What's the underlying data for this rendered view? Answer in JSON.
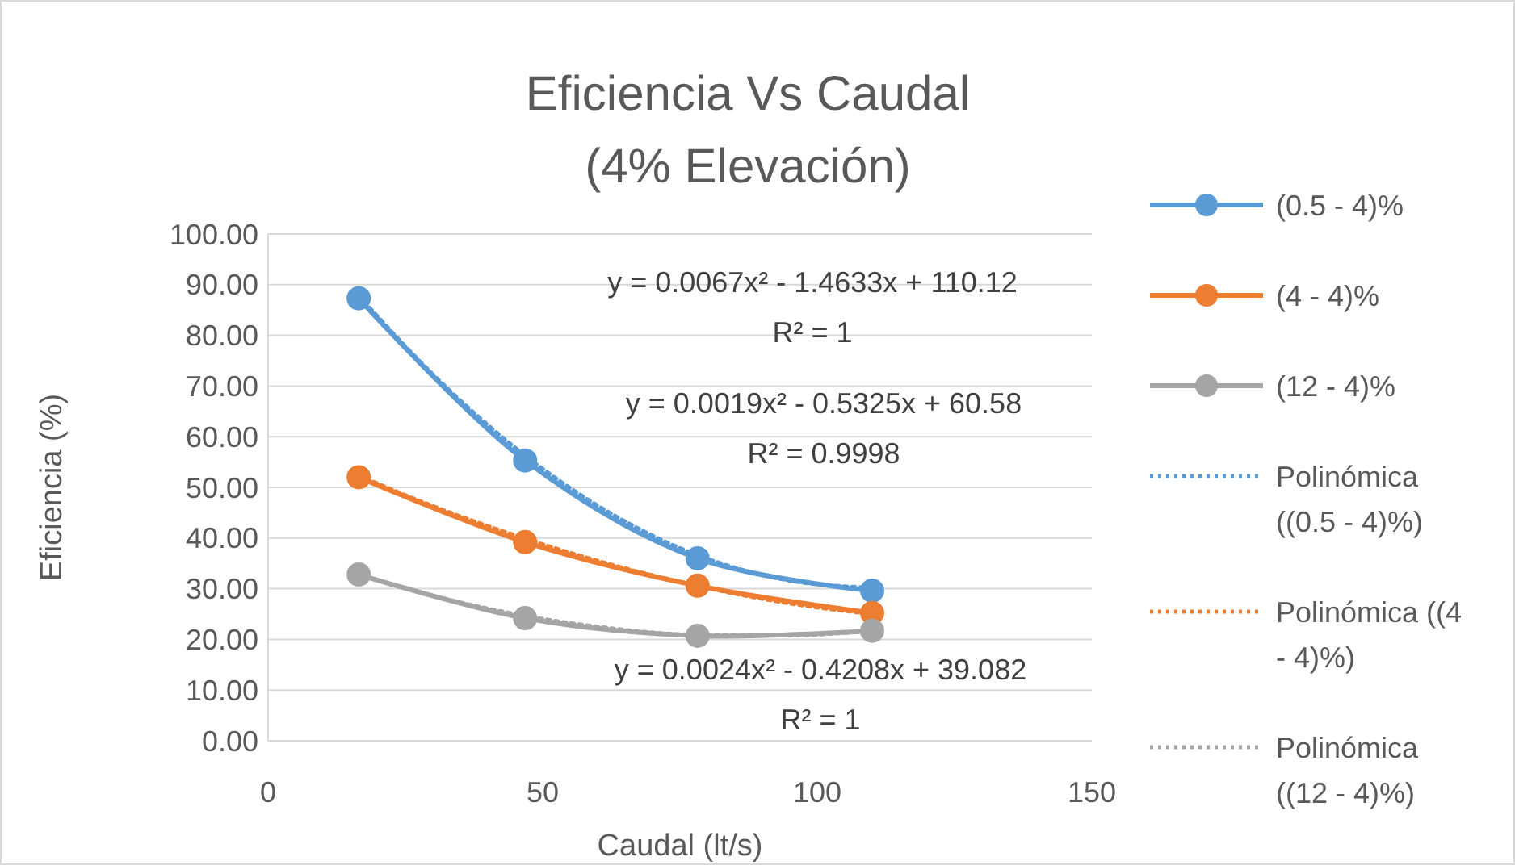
{
  "chart_data": {
    "type": "line",
    "title": "Eficiencia Vs Caudal\n(4% Elevación)",
    "xlabel": "Caudal (lt/s)",
    "ylabel": "Eficiencia (%)",
    "xlim": [
      0,
      150
    ],
    "xticks": [
      0,
      50,
      100,
      150
    ],
    "ylim": [
      0,
      100
    ],
    "yticks": [
      {
        "value": 0,
        "label": "0.00"
      },
      {
        "value": 10,
        "label": "10.00"
      },
      {
        "value": 20,
        "label": "20.00"
      },
      {
        "value": 30,
        "label": "30.00"
      },
      {
        "value": 40,
        "label": "40.00"
      },
      {
        "value": 50,
        "label": "50.00"
      },
      {
        "value": 60,
        "label": "60.00"
      },
      {
        "value": 70,
        "label": "70.00"
      },
      {
        "value": 80,
        "label": "80.00"
      },
      {
        "value": 90,
        "label": "90.00"
      },
      {
        "value": 100,
        "label": "100.00"
      }
    ],
    "grid": "y",
    "legend": "right",
    "series": [
      {
        "name": "(0.5 - 4)%",
        "color": "#5b9bd5",
        "marker": "circle",
        "x": [
          16.5,
          46.8,
          78.2,
          110
        ],
        "values": [
          87.3,
          55.3,
          36,
          29.6
        ]
      },
      {
        "name": "(4 - 4)%",
        "color": "#ed7d31",
        "marker": "circle",
        "x": [
          16.5,
          46.8,
          78.2,
          110
        ],
        "values": [
          52,
          39.2,
          30.6,
          25.2
        ]
      },
      {
        "name": "(12 - 4)%",
        "color": "#a5a5a5",
        "marker": "circle",
        "x": [
          16.5,
          46.8,
          78.2,
          110
        ],
        "values": [
          32.8,
          24.2,
          20.7,
          21.7
        ]
      },
      {
        "name": "Polinómica ((0.5 - 4)%)",
        "color": "#5b9bd5",
        "marker": "none",
        "line_style": "dotted",
        "x": [
          16.5,
          30,
          47,
          60,
          78,
          95,
          110
        ],
        "values": [
          87.8,
          72.3,
          56.1,
          46.4,
          36.7,
          31.6,
          30.2
        ]
      },
      {
        "name": "Polinómica ((4 - 4)%)",
        "color": "#ed7d31",
        "marker": "none",
        "line_style": "dotted",
        "x": [
          16.5,
          30,
          47,
          60,
          78,
          95,
          110
        ],
        "values": [
          52.3,
          46.3,
          39.8,
          35.5,
          30.6,
          27.1,
          25
        ]
      },
      {
        "name": "Polinómica ((12 - 4)%)",
        "color": "#a5a5a5",
        "marker": "none",
        "line_style": "dotted",
        "x": [
          16.5,
          30,
          47,
          60,
          78,
          95,
          110
        ],
        "values": [
          32.8,
          28.6,
          24.6,
          22.5,
          20.9,
          20.8,
          21.8
        ]
      }
    ],
    "annotations": [
      "y = 0.0067x² - 1.4633x + 110.12",
      "R² = 1",
      "y = 0.0019x² - 0.5325x + 60.58",
      "R² = 0.9998",
      "y = 0.0024x² - 0.4208x + 39.082",
      "R² = 1"
    ]
  }
}
